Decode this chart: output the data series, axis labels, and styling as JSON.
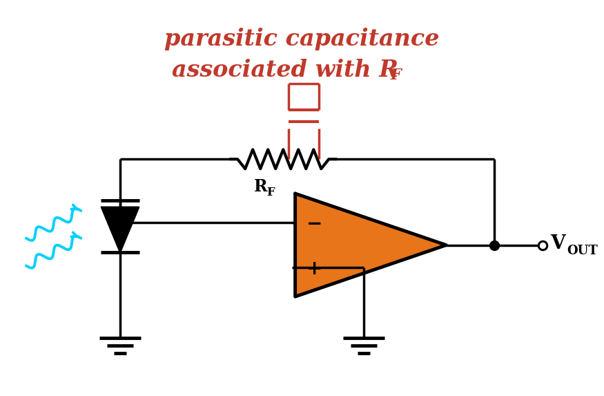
{
  "title_line1": "parasitic capacitance",
  "title_line2": "associated with R",
  "title_sub": "F",
  "title_color": "#c0392b",
  "bg_color": "#ffffff",
  "op_amp_color": "#e8751a",
  "op_amp_border": "#000000",
  "circuit_color": "#000000",
  "rf_color": "#c0392b",
  "light_color": "#00cfff",
  "vout_label": "V",
  "vout_sub": "OUT",
  "rf_label": "R",
  "rf_sub": "F"
}
